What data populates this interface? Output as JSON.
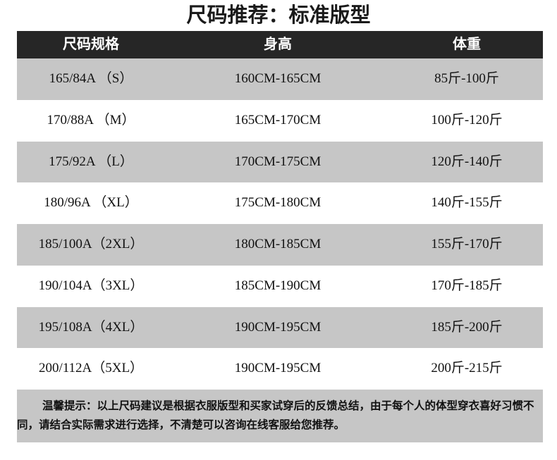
{
  "title": "尺码推荐：标准版型",
  "table": {
    "headers": [
      "尺码规格",
      "身高",
      "体重"
    ],
    "rows": [
      [
        "165/84A （S）",
        "160CM-165CM",
        "85斤-100斤"
      ],
      [
        "170/88A （M）",
        "165CM-170CM",
        "100斤-120斤"
      ],
      [
        "175/92A （L）",
        "170CM-175CM",
        "120斤-140斤"
      ],
      [
        "180/96A （XL）",
        "175CM-180CM",
        "140斤-155斤"
      ],
      [
        "185/100A（2XL）",
        "180CM-185CM",
        "155斤-170斤"
      ],
      [
        "190/104A（3XL）",
        "185CM-190CM",
        "170斤-185斤"
      ],
      [
        "195/108A（4XL）",
        "190CM-195CM",
        "185斤-200斤"
      ],
      [
        "200/112A（5XL）",
        "190CM-195CM",
        "200斤-215斤"
      ]
    ]
  },
  "note": "温馨提示：以上尺码建议是根据衣服版型和买家试穿后的反馈总结，由于每个人的体型穿衣喜好习惯不同，请结合实际需求进行选择，不清楚可以咨询在线客服给您推荐。",
  "colors": {
    "header_bg": "#262626",
    "stripe": "#c6c6c6"
  }
}
